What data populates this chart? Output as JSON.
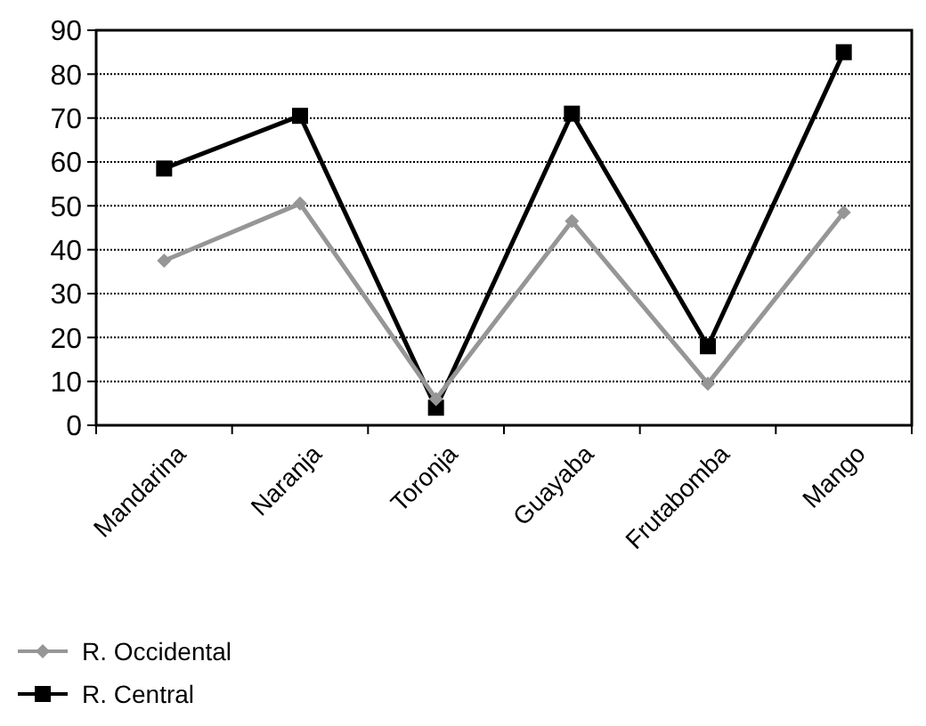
{
  "chart_data": {
    "type": "line",
    "categories": [
      "Mandarina",
      "Naranja",
      "Toronja",
      "Guayaba",
      "Frutabomba",
      "Mango"
    ],
    "series": [
      {
        "name": "R. Occidental",
        "color": "#969696",
        "marker": "diamond",
        "values": [
          37.5,
          50.5,
          6,
          46.5,
          9.5,
          48.5
        ]
      },
      {
        "name": "R. Central",
        "color": "#000000",
        "marker": "square",
        "values": [
          58.5,
          70.5,
          4,
          71,
          18,
          85
        ]
      }
    ],
    "ylim": [
      0,
      90
    ],
    "yticks": [
      0,
      10,
      20,
      30,
      40,
      50,
      60,
      70,
      80,
      90
    ],
    "grid": "y",
    "legend": "bottom"
  }
}
